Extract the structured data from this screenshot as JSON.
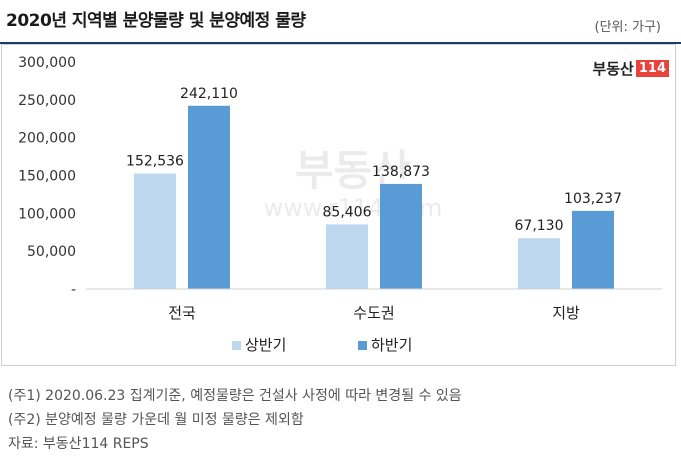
{
  "header": {
    "title": "2020년 지역별 분양물량 및 분양예정 물량",
    "unit": "(단위: 가구)"
  },
  "logo": {
    "text": "부동산",
    "number": "114"
  },
  "watermark": {
    "brand": "부동산",
    "url": "www.r114.com"
  },
  "chart_data": {
    "type": "bar",
    "categories": [
      "전국",
      "수도권",
      "지방"
    ],
    "series": [
      {
        "name": "상반기",
        "values": [
          152536,
          85406,
          67130
        ],
        "color": "#bdd7ee"
      },
      {
        "name": "하반기",
        "values": [
          242110,
          138873,
          103237
        ],
        "color": "#5b9bd5"
      }
    ],
    "data_labels": [
      [
        "152,536",
        "85,406",
        "67,130"
      ],
      [
        "242,110",
        "138,873",
        "103,237"
      ]
    ],
    "y_ticks": [
      0,
      50000,
      100000,
      150000,
      200000,
      250000,
      300000
    ],
    "y_tick_labels": [
      "-",
      "50,000",
      "100,000",
      "150,000",
      "200,000",
      "250,000",
      "300,000"
    ],
    "ylim": [
      0,
      300000
    ],
    "grid": false,
    "legend": "bottom-center"
  },
  "notes": [
    "(주1) 2020.06.23 집계기준, 예정물량은 건설사 사정에 따라 변경될 수 있음",
    "(주2) 분양예정 물량 가운데 월 미정 물량은 제외함",
    "자료: 부동산114 REPS"
  ]
}
